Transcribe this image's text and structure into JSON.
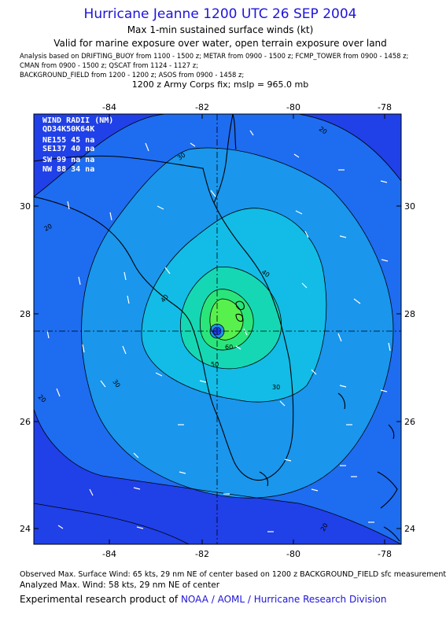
{
  "header": {
    "title": "Hurricane Jeanne 1200 UTC 26 SEP 2004",
    "subtitle": "Max 1-min sustained surface winds (kt)",
    "valid_line": "Valid for marine exposure over water, open terrain exposure over land",
    "analysis_lines": [
      "Analysis based on  DRIFTING_BUOY from 1100 - 1500 z;  METAR from 0900 - 1500 z;  FCMP_TOWER from 0900 - 1458 z;",
      "CMAN from 0900 - 1500 z;  QSCAT from 1124 - 1127 z;",
      "BACKGROUND_FIELD from 1200 - 1200 z;  ASOS from 0900 - 1458 z;"
    ],
    "army_fix": "1200 z Army Corps fix; mslp = 965.0 mb"
  },
  "map": {
    "x_ticks": [
      "-84",
      "-82",
      "-80",
      "-78"
    ],
    "y_ticks": [
      "30",
      "28",
      "26",
      "24"
    ],
    "contour_labels": [
      "20",
      "20",
      "20",
      "20",
      "30",
      "30",
      "30",
      "40",
      "40",
      "50",
      "60"
    ],
    "wind_radii": {
      "title": "WIND RADII (NM)",
      "header": "QD34K50K64K",
      "rows": [
        "NE155 45 na",
        "SE137 40 na",
        "SW 99 na na",
        "NW 88 34 na"
      ]
    },
    "colors": {
      "band_outer": "#2040e8",
      "band_20": "#1e6cf0",
      "band_30": "#1a96ec",
      "band_40": "#12bce6",
      "band_50": "#16d7b4",
      "band_60": "#2ae67a",
      "band_core": "#58f04c",
      "title": "#1e14d8"
    }
  },
  "footer": {
    "observed": "Observed Max. Surface Wind: 65 kts, 29 nm NE of center based on 1200 z BACKGROUND_FIELD sfc measurement",
    "analyzed": "Analyzed Max. Wind: 58 kts, 29 nm NE of center",
    "credit_prefix": "Experimental research product of",
    "credit_org": "NOAA / AOML / Hurricane Research Division"
  }
}
